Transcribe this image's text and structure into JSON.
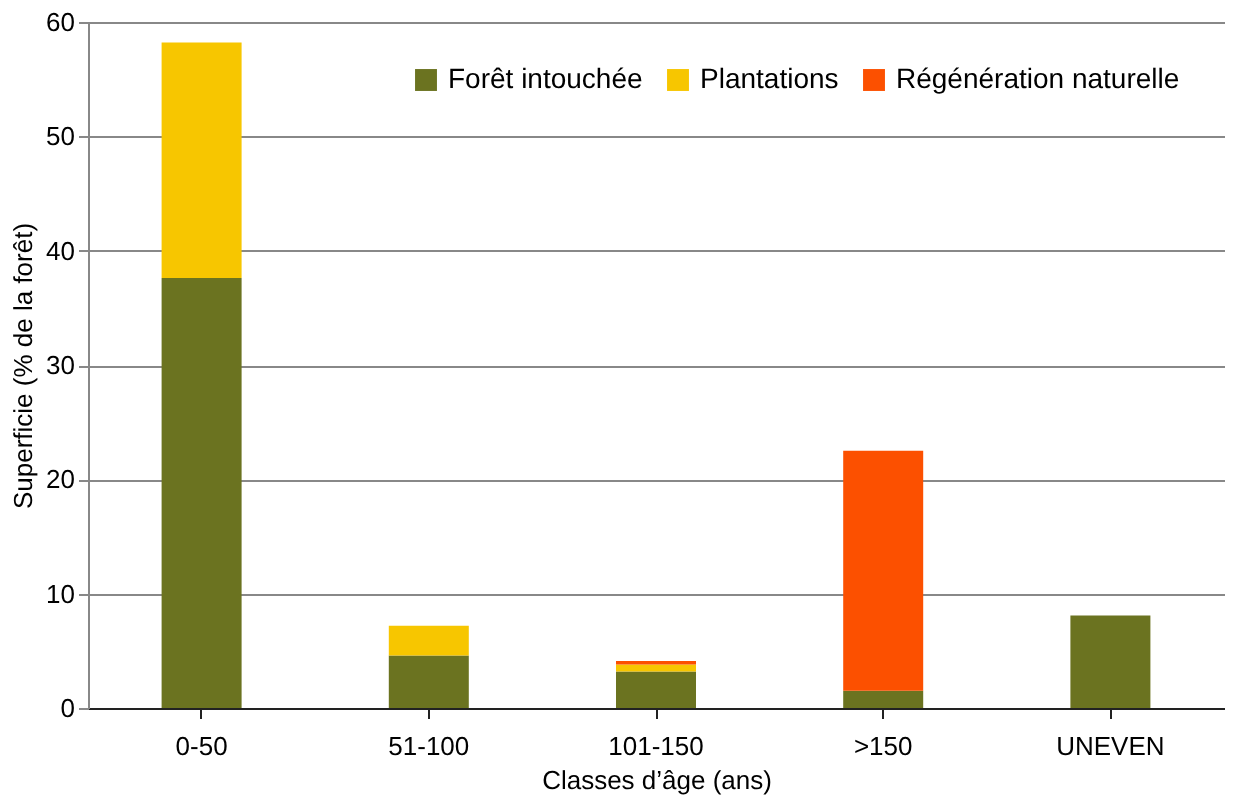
{
  "chart_data": {
    "type": "bar",
    "stacked": true,
    "xlabel": "Classes d’âge (ans)",
    "ylabel": "Superficie (% de la forêt)",
    "categories": [
      "0-50",
      "51-100",
      "101-150",
      ">150",
      "UNEVEN"
    ],
    "series": [
      {
        "name": "Forêt intouchée",
        "color": "#6b7320",
        "values": [
          37.6,
          4.6,
          3.2,
          1.5,
          8.1
        ]
      },
      {
        "name": "Plantations",
        "color": "#f7c600",
        "values": [
          20.6,
          2.6,
          0.6,
          null,
          null
        ]
      },
      {
        "name": "Régénération naturelle",
        "color": "#fc5000",
        "values": [
          null,
          null,
          0.3,
          21.0,
          null
        ]
      }
    ],
    "ylim": [
      0,
      60
    ],
    "yticks": [
      0,
      10,
      20,
      30,
      40,
      50,
      60
    ],
    "grid": "y",
    "legend": "top right"
  }
}
